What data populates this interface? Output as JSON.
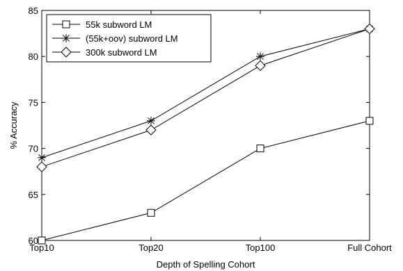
{
  "chart_data": {
    "type": "line",
    "categories": [
      "Top10",
      "Top20",
      "Top100",
      "Full Cohort"
    ],
    "xlabel": "Depth of Spelling Cohort",
    "ylabel": "% Accuracy",
    "ylim": [
      60,
      85
    ],
    "yticks": [
      60,
      65,
      70,
      75,
      80,
      85
    ],
    "grid": false,
    "legend_position": "top-left",
    "series": [
      {
        "name": "55k subword LM",
        "marker": "square",
        "values": [
          60,
          63,
          70,
          73
        ]
      },
      {
        "name": "(55k+oov) subword LM",
        "marker": "star",
        "values": [
          69,
          73,
          80,
          83
        ]
      },
      {
        "name": "300k subword LM",
        "marker": "diamond",
        "values": [
          68,
          72,
          79,
          83
        ]
      }
    ],
    "colors": {
      "line": "#000000",
      "background": "#ffffff"
    }
  }
}
